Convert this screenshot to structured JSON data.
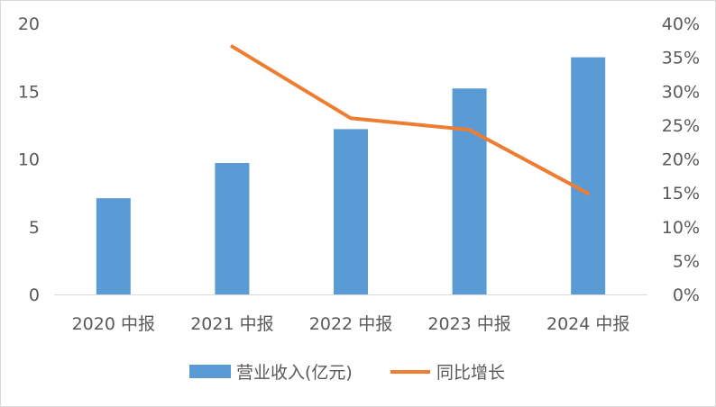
{
  "chart_data": {
    "type": "bar",
    "categories": [
      "2020 中报",
      "2021 中报",
      "2022 中报",
      "2023 中报",
      "2024 中报"
    ],
    "series": [
      {
        "name": "营业收入(亿元)",
        "type": "bar",
        "axis": "left",
        "values": [
          7.1,
          9.7,
          12.2,
          15.2,
          17.5
        ]
      },
      {
        "name": "同比增长",
        "type": "line",
        "axis": "right",
        "values": [
          null,
          0.366,
          0.26,
          0.243,
          0.149
        ]
      }
    ],
    "y_left": {
      "min": 0,
      "max": 20,
      "step": 5,
      "ticks": [
        "0",
        "5",
        "10",
        "15",
        "20"
      ]
    },
    "y_right": {
      "min": 0,
      "max": 0.4,
      "step": 0.05,
      "ticks": [
        "0%",
        "5%",
        "10%",
        "15%",
        "20%",
        "25%",
        "30%",
        "35%",
        "40%"
      ]
    },
    "legend_position": "bottom",
    "grid": false,
    "colors": {
      "bar": "#5b9bd5",
      "line": "#ed7d31",
      "axis": "#d9d9d9",
      "text": "#595959"
    }
  }
}
